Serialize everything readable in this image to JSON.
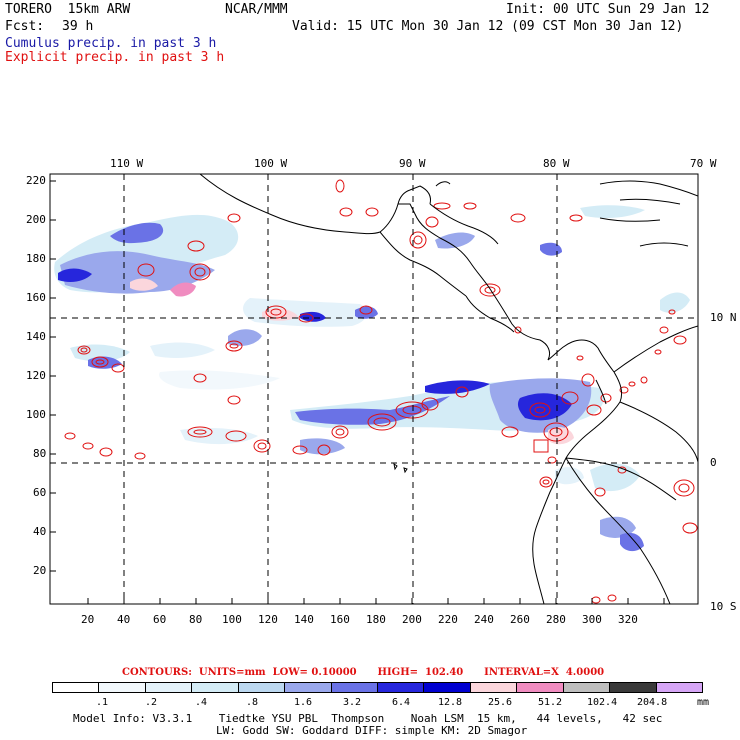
{
  "header": {
    "model": "TORERO  15km ARW",
    "agency": "NCAR/MMM",
    "init": "Init: 00 UTC Sun 29 Jan 12",
    "fcst_label": "Fcst:",
    "fcst_value": "39 h",
    "valid": "Valid: 15 UTC Mon 30 Jan 12 (09 CST Mon 30 Jan 12)",
    "line_cumulus": "Cumulus precip. in past 3 h",
    "line_explicit": "Explicit precip. in past 3 h"
  },
  "colors": {
    "cumulus_text": "#1a1aa6",
    "explicit_text": "#e01010",
    "contour": "#e01010",
    "grid": "#000000",
    "coast": "#000000"
  },
  "map": {
    "top_longitudes": [
      "110 W",
      "100 W",
      "90 W",
      "80 W",
      "70 W"
    ],
    "right_latitudes": [
      "10 N",
      "0",
      "10 S"
    ],
    "y_ticks": [
      "220",
      "200",
      "180",
      "160",
      "140",
      "120",
      "100",
      "80",
      "60",
      "40",
      "20"
    ],
    "x_ticks": [
      "20",
      "40",
      "60",
      "80",
      "100",
      "120",
      "140",
      "160",
      "180",
      "200",
      "220",
      "240",
      "260",
      "280",
      "300",
      "320"
    ]
  },
  "contour_line": {
    "text": "CONTOURS:  UNITS=mm  LOW= 0.10000      HIGH=  102.40      INTERVAL=X  4.0000"
  },
  "legend": {
    "ticks": [
      ".1",
      ".2",
      ".4",
      ".8",
      "1.6",
      "3.2",
      "6.4",
      "12.8",
      "25.6",
      "51.2",
      "102.4",
      "204.8"
    ],
    "unit": "mm",
    "colors": [
      "#ffffff",
      "#f2f8fc",
      "#e4f2fa",
      "#d4ecf6",
      "#bcd8f0",
      "#9aa8ec",
      "#6a72e6",
      "#2626dc",
      "#0000d0",
      "#fbd6dc",
      "#f08cc0",
      "#bebebe",
      "#3a3a3a",
      "#d6a6f6"
    ]
  },
  "footer": {
    "line1": "Model Info: V3.3.1    Tiedtke YSU PBL  Thompson    Noah LSM  15 km,   44 levels,   42 sec",
    "line2": "LW: Godd SW: Goddard DIFF: simple KM: 2D Smagor"
  }
}
